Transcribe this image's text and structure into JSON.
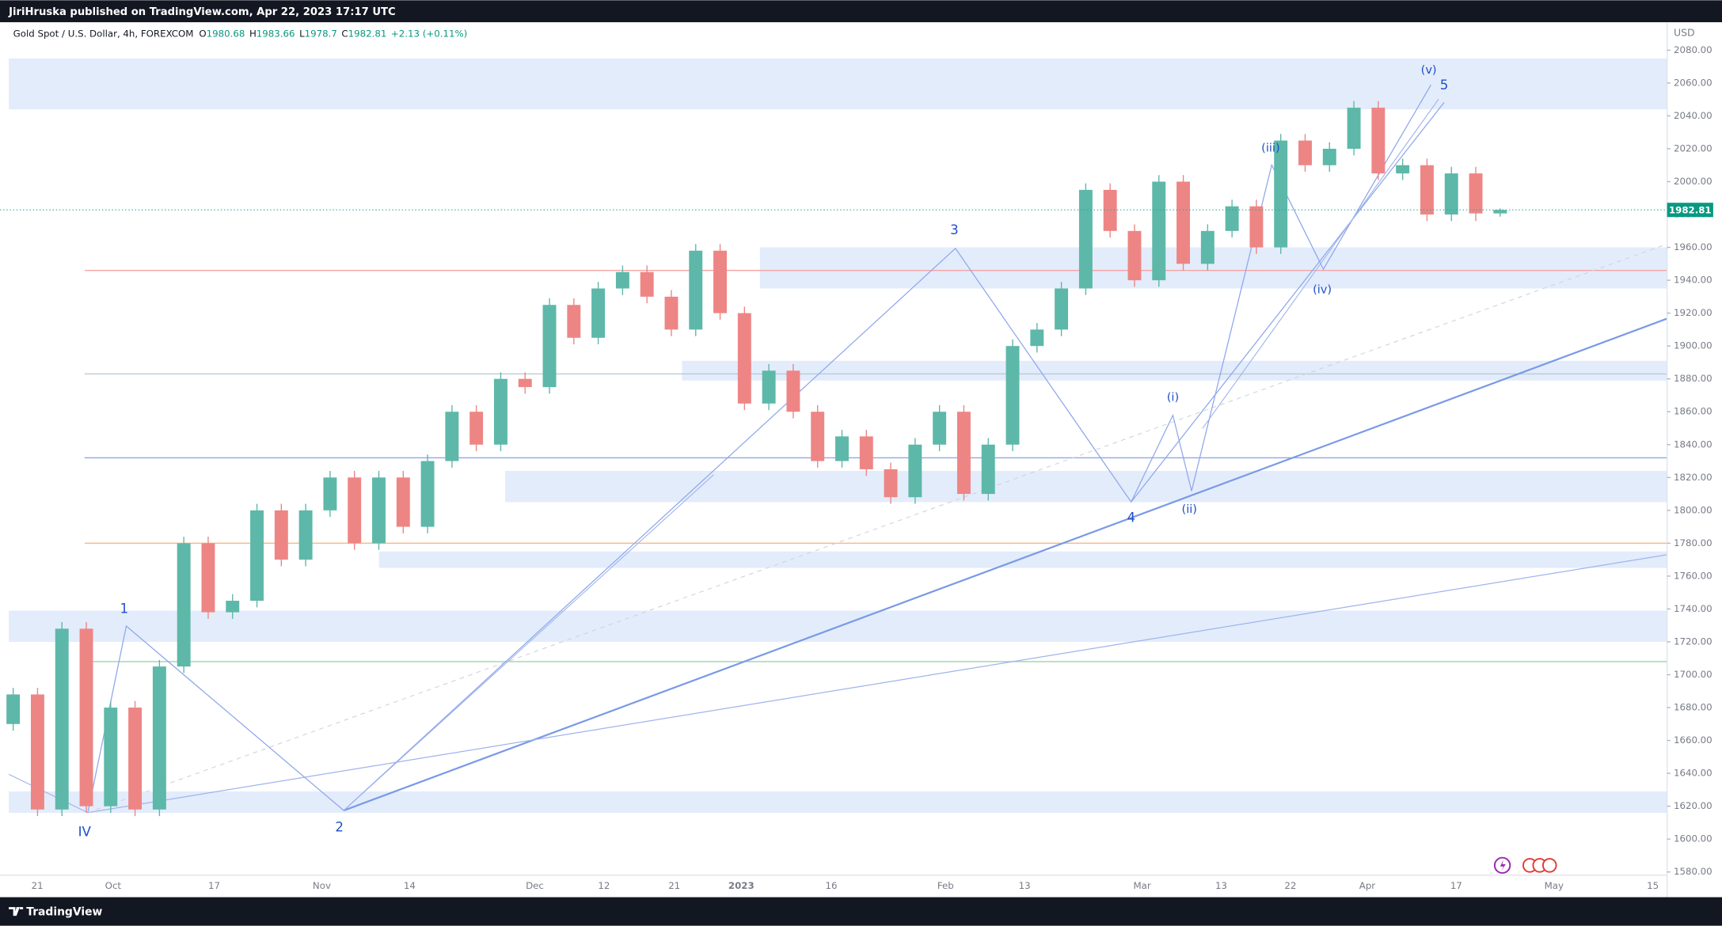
{
  "header": "JiriHruska published on TradingView.com, Apr 22, 2023 17:17 UTC",
  "footer_brand": "TradingView",
  "chart_data": {
    "type": "candlestick",
    "title": "Gold Spot / U.S. Dollar, 4h, FOREXCOM",
    "legend": [
      {
        "label": "O",
        "value": 1980.68
      },
      {
        "label": "H",
        "value": 1983.66
      },
      {
        "label": "L",
        "value": 1978.7
      },
      {
        "label": "C",
        "value": 1982.81
      }
    ],
    "change": "+2.13 (+0.11%)",
    "currency": "USD",
    "up_color": "#5db8a9",
    "down_color": "#ee8585",
    "values": [
      [
        1670,
        1692,
        1666,
        1688
      ],
      [
        1688,
        1692,
        1614,
        1618
      ],
      [
        1618,
        1732,
        1614,
        1728
      ],
      [
        1728,
        1732,
        1616,
        1620
      ],
      [
        1620,
        1684,
        1616,
        1680
      ],
      [
        1680,
        1684,
        1614,
        1618
      ],
      [
        1618,
        1709,
        1614,
        1705
      ],
      [
        1705,
        1784,
        1701,
        1780
      ],
      [
        1780,
        1784,
        1734,
        1738
      ],
      [
        1738,
        1749,
        1734,
        1745
      ],
      [
        1745,
        1804,
        1741,
        1800
      ],
      [
        1800,
        1804,
        1766,
        1770
      ],
      [
        1770,
        1804,
        1766,
        1800
      ],
      [
        1800,
        1824,
        1796,
        1820
      ],
      [
        1820,
        1824,
        1776,
        1780
      ],
      [
        1780,
        1824,
        1776,
        1820
      ],
      [
        1820,
        1824,
        1786,
        1790
      ],
      [
        1790,
        1834,
        1786,
        1830
      ],
      [
        1830,
        1864,
        1826,
        1860
      ],
      [
        1860,
        1864,
        1836,
        1840
      ],
      [
        1840,
        1884,
        1836,
        1880
      ],
      [
        1880,
        1884,
        1871,
        1875
      ],
      [
        1875,
        1929,
        1871,
        1925
      ],
      [
        1925,
        1929,
        1901,
        1905
      ],
      [
        1905,
        1939,
        1901,
        1935
      ],
      [
        1935,
        1949,
        1931,
        1945
      ],
      [
        1945,
        1949,
        1926,
        1930
      ],
      [
        1930,
        1934,
        1906,
        1910
      ],
      [
        1910,
        1962,
        1906,
        1958
      ],
      [
        1958,
        1962,
        1916,
        1920
      ],
      [
        1920,
        1924,
        1861,
        1865
      ],
      [
        1865,
        1889,
        1861,
        1885
      ],
      [
        1885,
        1889,
        1856,
        1860
      ],
      [
        1860,
        1864,
        1826,
        1830
      ],
      [
        1830,
        1849,
        1826,
        1845
      ],
      [
        1845,
        1849,
        1821,
        1825
      ],
      [
        1825,
        1829,
        1804,
        1808
      ],
      [
        1808,
        1844,
        1804,
        1840
      ],
      [
        1840,
        1864,
        1836,
        1860
      ],
      [
        1860,
        1864,
        1806,
        1810
      ],
      [
        1810,
        1844,
        1806,
        1840
      ],
      [
        1840,
        1904,
        1836,
        1900
      ],
      [
        1900,
        1914,
        1896,
        1910
      ],
      [
        1910,
        1939,
        1906,
        1935
      ],
      [
        1935,
        1999,
        1931,
        1995
      ],
      [
        1995,
        1999,
        1966,
        1970
      ],
      [
        1970,
        1974,
        1936,
        1940
      ],
      [
        1940,
        2004,
        1936,
        2000
      ],
      [
        2000,
        2004,
        1946,
        1950
      ],
      [
        1950,
        1974,
        1946,
        1970
      ],
      [
        1970,
        1989,
        1966,
        1985
      ],
      [
        1985,
        1989,
        1956,
        1960
      ],
      [
        1960,
        2029,
        1956,
        2025
      ],
      [
        2025,
        2029,
        2006,
        2010
      ],
      [
        2010,
        2024,
        2006,
        2020
      ],
      [
        2020,
        2049,
        2016,
        2045
      ],
      [
        2045,
        2049,
        2001,
        2005
      ],
      [
        2005,
        2014,
        2001,
        2010
      ],
      [
        2010,
        2014,
        1976,
        1980
      ],
      [
        1980,
        2009,
        1976,
        2005
      ],
      [
        2005,
        2009,
        1976,
        1980.68
      ],
      [
        1980.68,
        1983.66,
        1978.7,
        1982.81
      ]
    ],
    "x_labels": [
      "21",
      "Oct",
      "17",
      "Nov",
      "14",
      "Dec",
      "12",
      "21",
      "2023",
      "16",
      "Feb",
      "13",
      "Mar",
      "13",
      "22",
      "Apr",
      "17",
      "May",
      "15"
    ],
    "ylim": [
      1578,
      2097
    ],
    "yticks": [
      {
        "value": 1580,
        "label": "1580.00"
      },
      {
        "value": 1600,
        "label": "1600.00"
      },
      {
        "value": 1620,
        "label": "1620.00"
      },
      {
        "value": 1640,
        "label": "1640.00"
      },
      {
        "value": 1660,
        "label": "1660.00"
      },
      {
        "value": 1680,
        "label": "1680.00"
      },
      {
        "value": 1700,
        "label": "1700.00"
      },
      {
        "value": 1720,
        "label": "1720.00"
      },
      {
        "value": 1740,
        "label": "1740.00"
      },
      {
        "value": 1760,
        "label": "1760.00"
      },
      {
        "value": 1780,
        "label": "1780.00"
      },
      {
        "value": 1800,
        "label": "1800.00"
      },
      {
        "value": 1820,
        "label": "1820.00"
      },
      {
        "value": 1840,
        "label": "1840.00"
      },
      {
        "value": 1860,
        "label": "1860.00"
      },
      {
        "value": 1880,
        "label": "1880.00"
      },
      {
        "value": 1900,
        "label": "1900.00"
      },
      {
        "value": 1920,
        "label": "1920.00"
      },
      {
        "value": 1940,
        "label": "1940.00"
      },
      {
        "value": 1960,
        "label": "1960.00"
      },
      {
        "value": 1980,
        "label": "1980.00"
      },
      {
        "value": 2000,
        "label": "2000.00"
      },
      {
        "value": 2020,
        "label": "2020.00"
      },
      {
        "value": 2040,
        "label": "2040.00"
      },
      {
        "value": 2060,
        "label": "2060.00"
      },
      {
        "value": 2080,
        "label": "2080.00"
      }
    ],
    "zones": [
      [
        2044,
        2075
      ],
      [
        1935,
        1960
      ],
      [
        1879,
        1891
      ],
      [
        1805,
        1824
      ],
      [
        1765,
        1775
      ],
      [
        1720,
        1739
      ],
      [
        1616,
        1629
      ]
    ],
    "zone_color": "#e3ecfb",
    "levels": [
      {
        "price": 1946,
        "color": "#f4a3a3"
      },
      {
        "price": 1883,
        "color": "#b9cbd6"
      },
      {
        "price": 1832,
        "color": "#8fa8e8"
      },
      {
        "price": 1780,
        "color": "#f7bb86"
      },
      {
        "price": 1708,
        "color": "#9fd3a6"
      }
    ],
    "wave_labels": [
      "IV",
      "1",
      "2",
      "3",
      "4",
      "5",
      "(i)",
      "(ii)",
      "(iii)",
      "(iv)",
      "(v)"
    ]
  }
}
